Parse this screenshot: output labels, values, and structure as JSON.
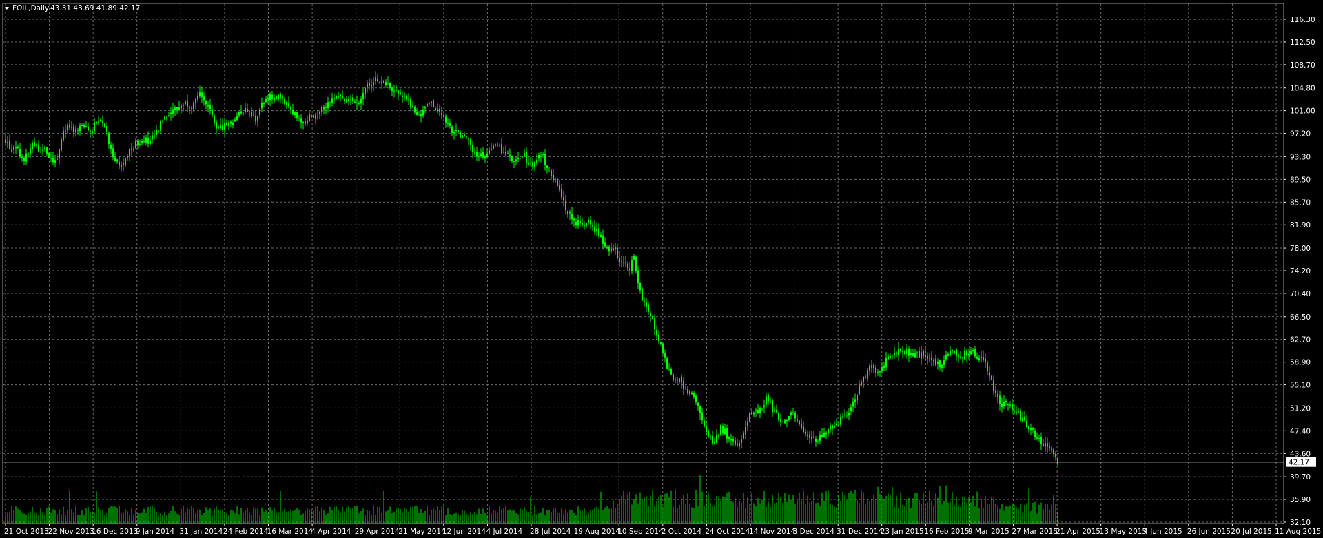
{
  "header": {
    "symbol_label": "FOIL,Daily",
    "ohlc_label": "43.31 43.69 41.89 42.17",
    "menu_icon": "triangle-down-icon"
  },
  "current_price_label": "42.17",
  "colors": {
    "background": "#000000",
    "grid": "#6b6b6b",
    "candle": "#00ff00",
    "volume": "#00e000",
    "axis_text": "#ffffff",
    "price_line": "#ffffff"
  },
  "chart_data": {
    "type": "candlestick",
    "symbol": "FOIL",
    "timeframe": "Daily",
    "y_ticks": [
      "116.30",
      "112.50",
      "108.70",
      "104.80",
      "101.00",
      "97.20",
      "93.30",
      "89.50",
      "85.70",
      "81.90",
      "78.00",
      "74.20",
      "70.40",
      "66.50",
      "62.70",
      "58.90",
      "55.10",
      "51.20",
      "47.40",
      "43.60",
      "39.70",
      "35.90",
      "32.10"
    ],
    "x_ticks": [
      "21 Oct 2013",
      "22 Nov 2013",
      "16 Dec 2013",
      "9 Jan 2014",
      "31 Jan 2014",
      "24 Feb 2014",
      "16 Mar 2014",
      "4 Apr 2014",
      "29 Apr 2014",
      "21 May 2014",
      "12 Jun 2014",
      "4 Jul 2014",
      "28 Jul 2014",
      "19 Aug 2014",
      "10 Sep 2014",
      "2 Oct 2014",
      "24 Oct 2014",
      "14 Nov 2014",
      "8 Dec 2014",
      "31 Dec 2014",
      "23 Jan 2015",
      "16 Feb 2015",
      "9 Mar 2015",
      "27 Mar 2015",
      "21 Apr 2015",
      "13 May 2015",
      "4 Jun 2015",
      "26 Jun 2015",
      "20 Jul 2015",
      "11 Aug 2015"
    ],
    "ylim": [
      32.1,
      118.0
    ],
    "current_price": 42.17,
    "last_ohlc": {
      "open": 43.31,
      "high": 43.69,
      "low": 41.89,
      "close": 42.17
    },
    "close_path": [
      [
        0,
        96.0
      ],
      [
        8,
        94.5
      ],
      [
        18,
        94.2
      ],
      [
        25,
        92.8
      ],
      [
        32,
        93.5
      ],
      [
        38,
        95.2
      ],
      [
        45,
        95.0
      ],
      [
        52,
        93.8
      ],
      [
        58,
        94.6
      ],
      [
        64,
        93.0
      ],
      [
        70,
        91.8
      ],
      [
        76,
        93.2
      ],
      [
        80,
        96.5
      ],
      [
        86,
        97.8
      ],
      [
        92,
        98.2
      ],
      [
        100,
        97.2
      ],
      [
        108,
        98.0
      ],
      [
        116,
        98.4
      ],
      [
        124,
        97.8
      ],
      [
        132,
        99.0
      ],
      [
        140,
        99.8
      ],
      [
        146,
        97.6
      ],
      [
        152,
        95.0
      ],
      [
        160,
        92.5
      ],
      [
        168,
        91.5
      ],
      [
        176,
        93.2
      ],
      [
        184,
        94.8
      ],
      [
        192,
        95.6
      ],
      [
        200,
        96.5
      ],
      [
        208,
        95.5
      ],
      [
        216,
        96.8
      ],
      [
        222,
        97.8
      ],
      [
        228,
        99.8
      ],
      [
        236,
        100.6
      ],
      [
        244,
        101.2
      ],
      [
        252,
        101.6
      ],
      [
        260,
        102.4
      ],
      [
        266,
        102.0
      ],
      [
        272,
        101.8
      ],
      [
        278,
        102.8
      ],
      [
        284,
        104.2
      ],
      [
        290,
        101.6
      ],
      [
        296,
        101.0
      ],
      [
        302,
        99.5
      ],
      [
        308,
        97.8
      ],
      [
        316,
        98.4
      ],
      [
        324,
        99.0
      ],
      [
        332,
        99.5
      ],
      [
        340,
        100.8
      ],
      [
        348,
        101.2
      ],
      [
        356,
        100.5
      ],
      [
        364,
        99.6
      ],
      [
        370,
        101.5
      ],
      [
        378,
        102.8
      ],
      [
        386,
        103.4
      ],
      [
        394,
        103.2
      ],
      [
        402,
        102.6
      ],
      [
        410,
        101.8
      ],
      [
        418,
        100.8
      ],
      [
        426,
        99.2
      ],
      [
        434,
        99.4
      ],
      [
        442,
        100.0
      ],
      [
        450,
        100.4
      ],
      [
        458,
        101.4
      ],
      [
        466,
        102.2
      ],
      [
        474,
        103.0
      ],
      [
        482,
        103.6
      ],
      [
        490,
        103.2
      ],
      [
        498,
        102.6
      ],
      [
        506,
        102.4
      ],
      [
        514,
        102.8
      ],
      [
        520,
        104.0
      ],
      [
        528,
        105.6
      ],
      [
        536,
        106.2
      ],
      [
        544,
        105.8
      ],
      [
        552,
        105.6
      ],
      [
        560,
        104.8
      ],
      [
        568,
        104.2
      ],
      [
        576,
        103.4
      ],
      [
        584,
        102.6
      ],
      [
        592,
        101.4
      ],
      [
        598,
        100.2
      ],
      [
        602,
        99.8
      ],
      [
        608,
        101.2
      ],
      [
        614,
        102.4
      ],
      [
        620,
        102.0
      ],
      [
        628,
        101.4
      ],
      [
        636,
        99.8
      ],
      [
        642,
        98.4
      ],
      [
        650,
        97.6
      ],
      [
        658,
        97.0
      ],
      [
        666,
        96.4
      ],
      [
        672,
        95.8
      ],
      [
        678,
        94.2
      ],
      [
        684,
        93.6
      ],
      [
        692,
        93.4
      ],
      [
        700,
        93.8
      ],
      [
        708,
        94.6
      ],
      [
        716,
        95.2
      ],
      [
        722,
        94.0
      ],
      [
        728,
        93.6
      ],
      [
        734,
        92.8
      ],
      [
        740,
        92.4
      ],
      [
        746,
        92.8
      ],
      [
        752,
        93.6
      ],
      [
        758,
        92.4
      ],
      [
        764,
        91.8
      ],
      [
        770,
        92.6
      ],
      [
        776,
        94.0
      ],
      [
        780,
        93.2
      ],
      [
        786,
        91.2
      ],
      [
        792,
        90.6
      ],
      [
        798,
        89.0
      ],
      [
        804,
        87.2
      ],
      [
        810,
        85.4
      ],
      [
        816,
        84.2
      ],
      [
        822,
        83.4
      ],
      [
        828,
        82.4
      ],
      [
        834,
        82.4
      ],
      [
        840,
        81.8
      ],
      [
        846,
        82.6
      ],
      [
        852,
        81.6
      ],
      [
        858,
        81.0
      ],
      [
        864,
        79.8
      ],
      [
        870,
        78.6
      ],
      [
        876,
        77.6
      ],
      [
        882,
        78.4
      ],
      [
        888,
        76.0
      ],
      [
        894,
        75.4
      ],
      [
        900,
        75.2
      ],
      [
        906,
        74.8
      ],
      [
        912,
        76.6
      ],
      [
        918,
        72.6
      ],
      [
        924,
        69.6
      ],
      [
        930,
        68.0
      ],
      [
        936,
        66.8
      ],
      [
        942,
        64.8
      ],
      [
        948,
        62.6
      ],
      [
        954,
        60.8
      ],
      [
        960,
        58.4
      ],
      [
        966,
        56.6
      ],
      [
        972,
        55.6
      ],
      [
        978,
        56.4
      ],
      [
        984,
        54.8
      ],
      [
        990,
        53.6
      ],
      [
        996,
        53.6
      ],
      [
        1002,
        51.8
      ],
      [
        1008,
        50.0
      ],
      [
        1014,
        47.8
      ],
      [
        1020,
        46.6
      ],
      [
        1026,
        45.8
      ],
      [
        1032,
        46.4
      ],
      [
        1038,
        47.8
      ],
      [
        1044,
        47.2
      ],
      [
        1050,
        46.0
      ],
      [
        1056,
        45.4
      ],
      [
        1062,
        44.6
      ],
      [
        1068,
        46.0
      ],
      [
        1074,
        48.6
      ],
      [
        1080,
        50.2
      ],
      [
        1086,
        51.0
      ],
      [
        1092,
        50.4
      ],
      [
        1098,
        51.4
      ],
      [
        1104,
        52.8
      ],
      [
        1110,
        51.8
      ],
      [
        1116,
        50.4
      ],
      [
        1122,
        49.8
      ],
      [
        1128,
        49.0
      ],
      [
        1134,
        49.4
      ],
      [
        1140,
        50.2
      ],
      [
        1146,
        49.6
      ],
      [
        1152,
        48.6
      ],
      [
        1158,
        47.8
      ],
      [
        1164,
        47.0
      ],
      [
        1170,
        46.2
      ],
      [
        1176,
        45.4
      ],
      [
        1182,
        46.2
      ],
      [
        1188,
        47.4
      ],
      [
        1194,
        48.0
      ],
      [
        1200,
        47.6
      ],
      [
        1206,
        48.4
      ],
      [
        1212,
        49.8
      ],
      [
        1218,
        50.6
      ],
      [
        1224,
        50.4
      ],
      [
        1230,
        51.8
      ],
      [
        1236,
        53.6
      ],
      [
        1242,
        55.4
      ],
      [
        1248,
        56.6
      ],
      [
        1254,
        57.8
      ],
      [
        1260,
        57.8
      ],
      [
        1266,
        57.4
      ],
      [
        1272,
        58.2
      ],
      [
        1278,
        59.2
      ],
      [
        1284,
        59.4
      ],
      [
        1290,
        60.0
      ],
      [
        1296,
        60.6
      ],
      [
        1302,
        60.4
      ],
      [
        1308,
        60.8
      ],
      [
        1314,
        60.2
      ],
      [
        1320,
        59.8
      ],
      [
        1326,
        60.2
      ],
      [
        1332,
        59.8
      ],
      [
        1338,
        59.4
      ],
      [
        1344,
        59.2
      ],
      [
        1350,
        58.8
      ],
      [
        1356,
        58.4
      ],
      [
        1362,
        59.6
      ],
      [
        1368,
        60.0
      ],
      [
        1374,
        60.6
      ],
      [
        1380,
        60.2
      ],
      [
        1386,
        59.8
      ],
      [
        1392,
        60.2
      ],
      [
        1398,
        60.8
      ],
      [
        1404,
        60.4
      ],
      [
        1410,
        60.0
      ],
      [
        1416,
        59.6
      ],
      [
        1422,
        58.6
      ],
      [
        1428,
        56.6
      ],
      [
        1434,
        54.6
      ],
      [
        1440,
        52.6
      ],
      [
        1446,
        51.6
      ],
      [
        1452,
        52.0
      ],
      [
        1458,
        51.4
      ],
      [
        1464,
        50.6
      ],
      [
        1470,
        50.0
      ],
      [
        1476,
        49.4
      ],
      [
        1482,
        48.2
      ],
      [
        1488,
        47.8
      ],
      [
        1494,
        46.8
      ],
      [
        1500,
        46.0
      ],
      [
        1506,
        45.4
      ],
      [
        1512,
        44.8
      ],
      [
        1518,
        43.8
      ],
      [
        1524,
        43.0
      ],
      [
        1528,
        42.17
      ]
    ]
  }
}
